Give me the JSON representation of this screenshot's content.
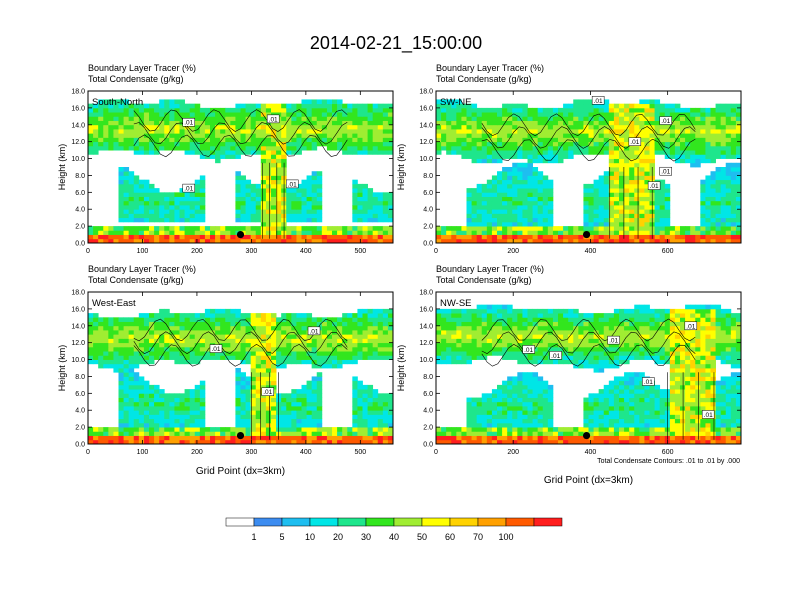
{
  "title": "2014-02-21_15:00:00",
  "colors": {
    "levels": [
      "#ffffff",
      "#3c8cf0",
      "#1ebef0",
      "#00e6e6",
      "#1ee68c",
      "#32e61e",
      "#a0ed32",
      "#ffff00",
      "#ffd200",
      "#ffa000",
      "#ff5a00",
      "#ff1e1e"
    ]
  },
  "legend": {
    "labels": [
      "1",
      "5",
      "10",
      "20",
      "30",
      "40",
      "50",
      "60",
      "70",
      "100"
    ]
  },
  "footnote": "Total Condensate Contours: .01 to .01 by .000",
  "chart_data": [
    {
      "type": "heatmap",
      "id": "south-north",
      "title_line1": "Boundary Layer Tracer   (%)",
      "title_line2": "Total Condensate   (g/kg)",
      "panel_label": "South-North",
      "ylabel": "Height (km)",
      "xlabel": "",
      "xlim": [
        0,
        560
      ],
      "ylim": [
        0,
        18
      ],
      "xticks": [
        "0",
        "100",
        "200",
        "300",
        "400",
        "500"
      ],
      "yticks": [
        "0.0",
        "2.0",
        "4.0",
        "6.0",
        "8.0",
        "10.0",
        "12.0",
        "14.0",
        "16.0",
        "18.0"
      ],
      "contour_labels": [
        {
          "text": ".01",
          "x": 185,
          "y": 14.3
        },
        {
          "text": ".01",
          "x": 340,
          "y": 14.7
        },
        {
          "text": ".01",
          "x": 185,
          "y": 6.5
        },
        {
          "text": ".01",
          "x": 375,
          "y": 7.0
        }
      ],
      "marker": {
        "x": 280,
        "y": 1.0
      },
      "upper_band": [
        10.5,
        16.5
      ],
      "lower_band": [
        2.5,
        7.5
      ],
      "convection": [
        320,
        360
      ]
    },
    {
      "type": "heatmap",
      "id": "sw-ne",
      "title_line1": "Boundary Layer Tracer   (%)",
      "title_line2": "Total Condensate   (g/kg)",
      "panel_label": "SW-NE",
      "ylabel": "Height (km)",
      "xlabel": "",
      "xlim": [
        0,
        790
      ],
      "ylim": [
        0,
        18
      ],
      "xticks": [
        "0",
        "200",
        "400",
        "600"
      ],
      "yticks": [
        "0.0",
        "2.0",
        "4.0",
        "6.0",
        "8.0",
        "10.0",
        "12.0",
        "14.0",
        "16.0",
        "18.0"
      ],
      "contour_labels": [
        {
          "text": ".01",
          "x": 420,
          "y": 16.9
        },
        {
          "text": ".01",
          "x": 515,
          "y": 12.0
        },
        {
          "text": ".01",
          "x": 595,
          "y": 14.5
        },
        {
          "text": ".01",
          "x": 595,
          "y": 8.5
        },
        {
          "text": ".01",
          "x": 565,
          "y": 6.8
        }
      ],
      "marker": {
        "x": 390,
        "y": 1.0
      },
      "upper_band": [
        10.0,
        16.5
      ],
      "lower_band": [
        2.0,
        8.0
      ],
      "convection": [
        450,
        560
      ]
    },
    {
      "type": "heatmap",
      "id": "west-east",
      "title_line1": "Boundary Layer Tracer   (%)",
      "title_line2": "Total Condensate   (g/kg)",
      "panel_label": "West-East",
      "ylabel": "Height (km)",
      "xlabel": "Grid Point (dx=3km)",
      "xlim": [
        0,
        560
      ],
      "ylim": [
        0,
        18
      ],
      "xticks": [
        "0",
        "100",
        "200",
        "300",
        "400",
        "500"
      ],
      "yticks": [
        "0.0",
        "2.0",
        "4.0",
        "6.0",
        "8.0",
        "10.0",
        "12.0",
        "14.0",
        "16.0",
        "18.0"
      ],
      "contour_labels": [
        {
          "text": ".01",
          "x": 415,
          "y": 13.4
        },
        {
          "text": ".01",
          "x": 235,
          "y": 11.3
        },
        {
          "text": ".01",
          "x": 330,
          "y": 6.2
        }
      ],
      "marker": {
        "x": 280,
        "y": 1.0
      },
      "upper_band": [
        9.5,
        15.5
      ],
      "lower_band": [
        2.0,
        7.5
      ],
      "convection": [
        300,
        350
      ]
    },
    {
      "type": "heatmap",
      "id": "nw-se",
      "title_line1": "Boundary Layer Tracer   (%)",
      "title_line2": "Total Condensate   (g/kg)",
      "panel_label": "NW-SE",
      "ylabel": "Height (km)",
      "xlabel": "Grid Point (dx=3km)",
      "xlim": [
        0,
        790
      ],
      "ylim": [
        0,
        18
      ],
      "xticks": [
        "0",
        "200",
        "400",
        "600"
      ],
      "yticks": [
        "0.0",
        "2.0",
        "4.0",
        "6.0",
        "8.0",
        "10.0",
        "12.0",
        "14.0",
        "16.0",
        "18.0"
      ],
      "contour_labels": [
        {
          "text": ".01",
          "x": 660,
          "y": 14.0
        },
        {
          "text": ".01",
          "x": 460,
          "y": 12.3
        },
        {
          "text": ".01",
          "x": 240,
          "y": 11.2
        },
        {
          "text": ".01",
          "x": 310,
          "y": 10.5
        },
        {
          "text": ".01",
          "x": 550,
          "y": 7.4
        },
        {
          "text": ".01",
          "x": 705,
          "y": 3.5
        }
      ],
      "marker": {
        "x": 390,
        "y": 1.0
      },
      "upper_band": [
        9.5,
        16.0
      ],
      "lower_band": [
        2.0,
        7.0
      ],
      "convection": [
        600,
        720
      ]
    }
  ]
}
